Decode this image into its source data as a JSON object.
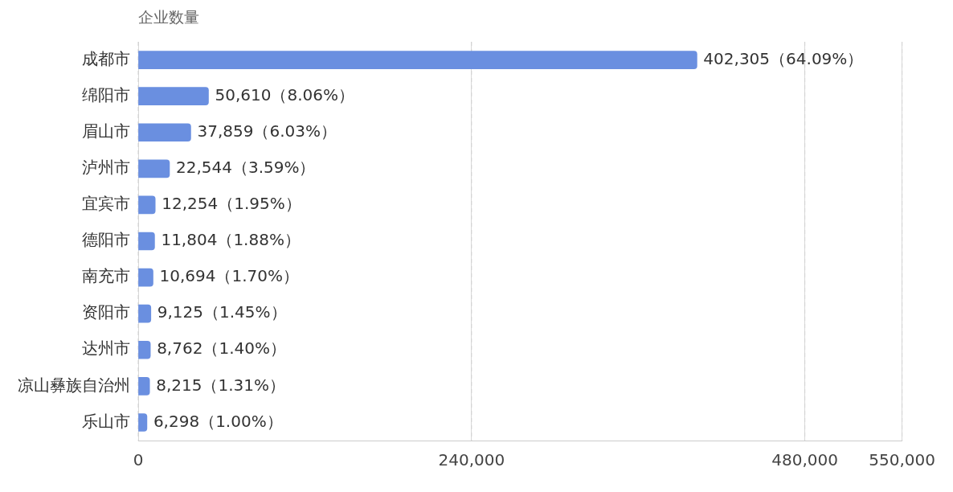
{
  "chart_data": {
    "type": "bar",
    "orientation": "horizontal",
    "ylabel": "企业数量",
    "categories": [
      "成都市",
      "绵阳市",
      "眉山市",
      "泸州市",
      "宜宾市",
      "德阳市",
      "南充市",
      "资阳市",
      "达州市",
      "凉山彝族自治州",
      "乐山市"
    ],
    "values": [
      402305,
      50610,
      37859,
      22544,
      12254,
      11804,
      10694,
      9125,
      8762,
      8215,
      6298
    ],
    "value_labels": [
      "402,305（64.09%）",
      "50,610（8.06%）",
      "37,859（6.03%）",
      "22,544（3.59%）",
      "12,254（1.95%）",
      "11,804（1.88%）",
      "10,694（1.70%）",
      "9,125（1.45%）",
      "8,762（1.40%）",
      "8,215（1.31%）",
      "6,298（1.00%）"
    ],
    "color": "#6a8fe0",
    "xlim": [
      0,
      550000
    ],
    "xticks": [
      {
        "value": 0,
        "label": "0"
      },
      {
        "value": 240000,
        "label": "240,000"
      },
      {
        "value": 480000,
        "label": "480,000"
      },
      {
        "value": 550000,
        "label": "550,000"
      }
    ],
    "grid": "x",
    "legend": false
  }
}
